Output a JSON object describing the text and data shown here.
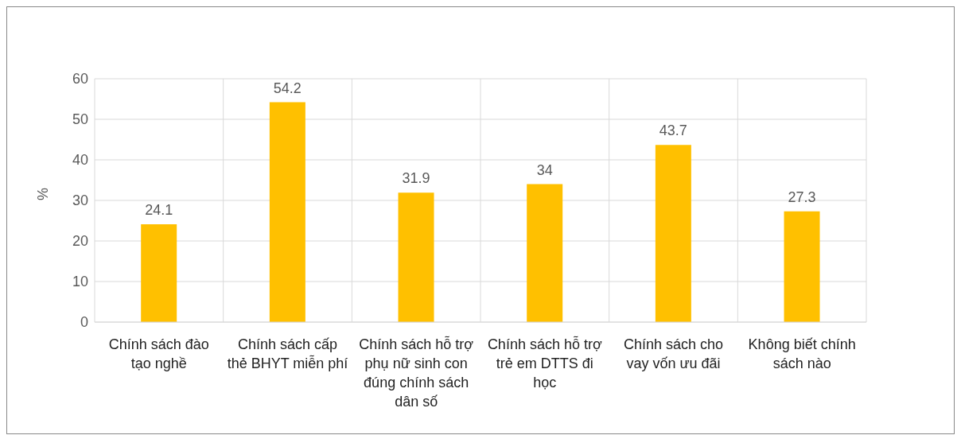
{
  "chart_data": {
    "type": "bar",
    "ylabel": "%",
    "categories": [
      "Chính sách đào tạo nghề",
      "Chính sách cấp thẻ BHYT miễn phí",
      "Chính sách hỗ trợ phụ nữ sinh con đúng chính sách dân số",
      "Chính sách hỗ trợ trẻ em DTTS đi học",
      "Chính sách cho vay vốn ưu đãi",
      "Không biết chính sách nào"
    ],
    "values": [
      24.1,
      54.2,
      31.9,
      34,
      43.7,
      27.3
    ],
    "color": "#ffc000",
    "ylim": [
      0,
      60
    ],
    "yticks": [
      0,
      10,
      20,
      30,
      40,
      50,
      60
    ],
    "grid": true,
    "data_labels": true
  }
}
